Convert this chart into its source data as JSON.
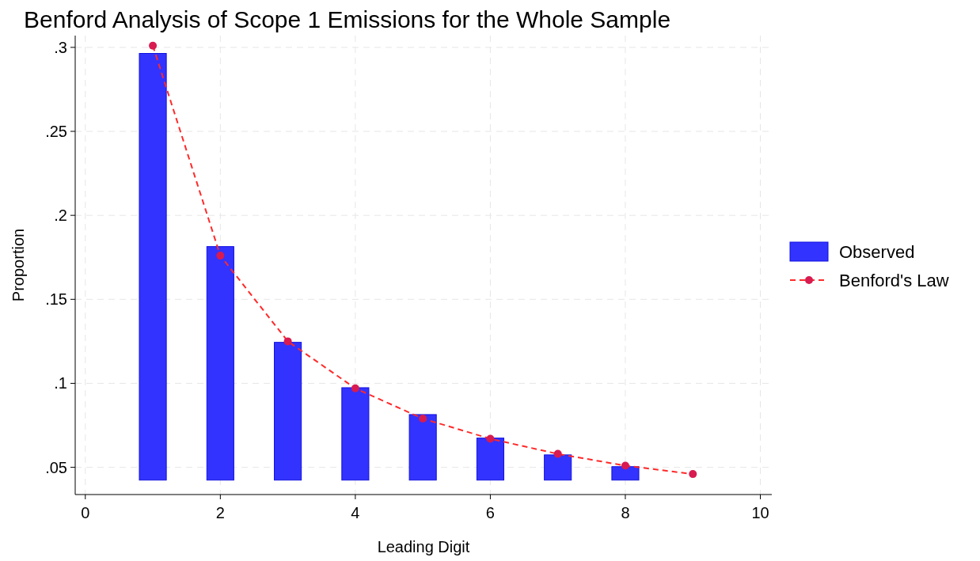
{
  "chart_data": {
    "type": "bar",
    "title": "Benford Analysis of Scope 1 Emissions for the Whole Sample",
    "xlabel": "Leading Digit",
    "ylabel": "Proportion",
    "xlim": [
      -0.15,
      10.17
    ],
    "xticks": [
      0,
      2,
      4,
      6,
      8,
      10
    ],
    "ylim": [
      0.0338,
      0.307
    ],
    "yticks": [
      {
        "value": 0.05,
        "label": ".05"
      },
      {
        "value": 0.1,
        "label": ".1"
      },
      {
        "value": 0.15,
        "label": ".15"
      },
      {
        "value": 0.2,
        "label": ".2"
      },
      {
        "value": 0.25,
        "label": ".25"
      },
      {
        "value": 0.3,
        "label": ".3"
      }
    ],
    "grid": true,
    "legend": "right",
    "series": [
      {
        "name": "Observed",
        "color": "#3333ff",
        "x": [
          1,
          2,
          3,
          4,
          5,
          6,
          7,
          8
        ],
        "base": [
          0.0424,
          0.0424,
          0.0424,
          0.0424,
          0.0424,
          0.0424,
          0.0424,
          0.0424
        ],
        "values": [
          0.254,
          0.139,
          0.082,
          0.055,
          0.039,
          0.025,
          0.015,
          0.008
        ]
      },
      {
        "name": "Benford's Law",
        "type": "line",
        "color": "#ff2a2a",
        "marker": "circle",
        "line_style": "dashed",
        "x": [
          1,
          2,
          3,
          4,
          5,
          6,
          7,
          8,
          9
        ],
        "values": [
          0.301,
          0.176,
          0.125,
          0.097,
          0.079,
          0.067,
          0.058,
          0.051,
          0.046
        ]
      }
    ]
  }
}
